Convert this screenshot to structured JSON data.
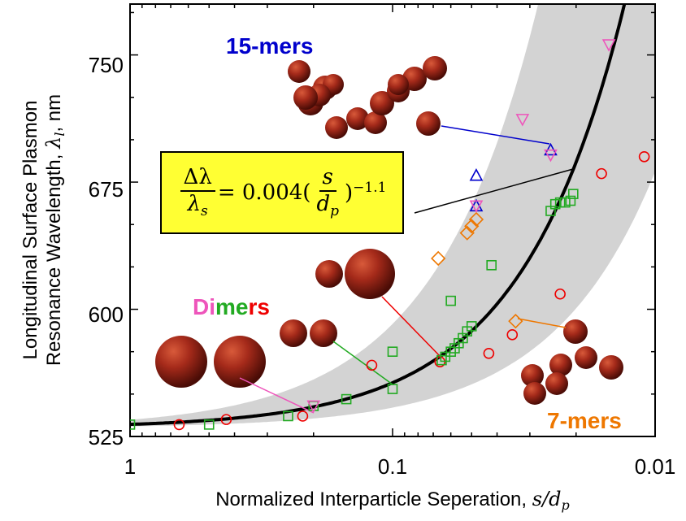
{
  "chart_data": {
    "type": "scatter",
    "x_scale": "log",
    "x_reversed": true,
    "xlim": [
      1,
      0.01
    ],
    "ylim": [
      525,
      780
    ],
    "x_ticks": [
      1,
      0.1,
      0.01
    ],
    "x_tick_labels": [
      "1",
      "0.1",
      "0.01"
    ],
    "y_ticks": [
      525,
      600,
      675,
      750
    ],
    "y_tick_labels": [
      "525",
      "600",
      "675",
      "750"
    ],
    "xlabel": "Normalized Interparticle Seperation, ",
    "xlabel_math": "s/d",
    "xlabel_sub": "p",
    "ylabel_line1": "Longitudinal Surface Plasmon",
    "ylabel_line2": "Resonance Wavelength, ",
    "ylabel_math": "λ",
    "ylabel_sub": "l",
    "ylabel_unit": ", nm",
    "grid": false,
    "equation": {
      "lhs_num": "Δλ",
      "lhs_den_main": "λ",
      "lhs_den_sub": "s",
      "eq_coef": "= 0.004(",
      "rhs_num": "s",
      "rhs_den_main": "d",
      "rhs_den_sub": "p",
      "rhs_exp_close": ")",
      "rhs_exp": "−1.1"
    },
    "group_labels": {
      "fifteen_mers": "15-mers",
      "dimers_part1": "Di",
      "dimers_part2": "me",
      "dimers_part3": "rs",
      "seven_mers": "7-mers"
    },
    "colors": {
      "dimers": "#ee0000",
      "trimers": "#22aa22",
      "seven_mers": "#ee7700",
      "fifteen_mers": "#0000cc",
      "pink": "#ee55bb",
      "fit": "#000000",
      "band": "#d3d3d3",
      "sphere": "#a52a1a"
    },
    "fit": {
      "lambda_s": 530,
      "coef": 0.004,
      "exponent": -1.1
    },
    "series": [
      {
        "marker": "circle",
        "color": "#ee0000",
        "points": [
          [
            0.65,
            532
          ],
          [
            0.43,
            535
          ],
          [
            0.22,
            537
          ],
          [
            0.12,
            567
          ],
          [
            0.066,
            569
          ],
          [
            0.043,
            574
          ],
          [
            0.035,
            585
          ],
          [
            0.023,
            609
          ],
          [
            0.016,
            680
          ],
          [
            0.011,
            690
          ]
        ]
      },
      {
        "marker": "square",
        "color": "#22aa22",
        "points": [
          [
            1.0,
            532
          ],
          [
            0.5,
            532
          ],
          [
            0.25,
            537
          ],
          [
            0.2,
            543
          ],
          [
            0.15,
            547
          ],
          [
            0.1,
            575
          ],
          [
            0.1,
            553
          ],
          [
            0.065,
            570
          ],
          [
            0.063,
            572
          ],
          [
            0.06,
            575
          ],
          [
            0.058,
            577
          ],
          [
            0.056,
            580
          ],
          [
            0.054,
            583
          ],
          [
            0.052,
            587
          ],
          [
            0.05,
            590
          ],
          [
            0.06,
            605
          ],
          [
            0.042,
            626
          ],
          [
            0.025,
            658
          ],
          [
            0.024,
            662
          ],
          [
            0.023,
            663
          ],
          [
            0.022,
            663
          ],
          [
            0.021,
            664
          ],
          [
            0.0205,
            668
          ]
        ]
      },
      {
        "marker": "diamond",
        "color": "#ee7700",
        "points": [
          [
            0.067,
            630
          ],
          [
            0.052,
            645
          ],
          [
            0.05,
            649
          ],
          [
            0.048,
            653
          ],
          [
            0.034,
            593
          ]
        ]
      },
      {
        "marker": "triangle-up",
        "color": "#0000cc",
        "points": [
          [
            0.048,
            679
          ],
          [
            0.048,
            661
          ],
          [
            0.025,
            694
          ]
        ]
      },
      {
        "marker": "triangle-down",
        "color": "#ee55bb",
        "points": [
          [
            0.048,
            661
          ],
          [
            0.032,
            712
          ],
          [
            0.025,
            691
          ],
          [
            0.015,
            756
          ],
          [
            0.2,
            543
          ]
        ]
      }
    ]
  }
}
